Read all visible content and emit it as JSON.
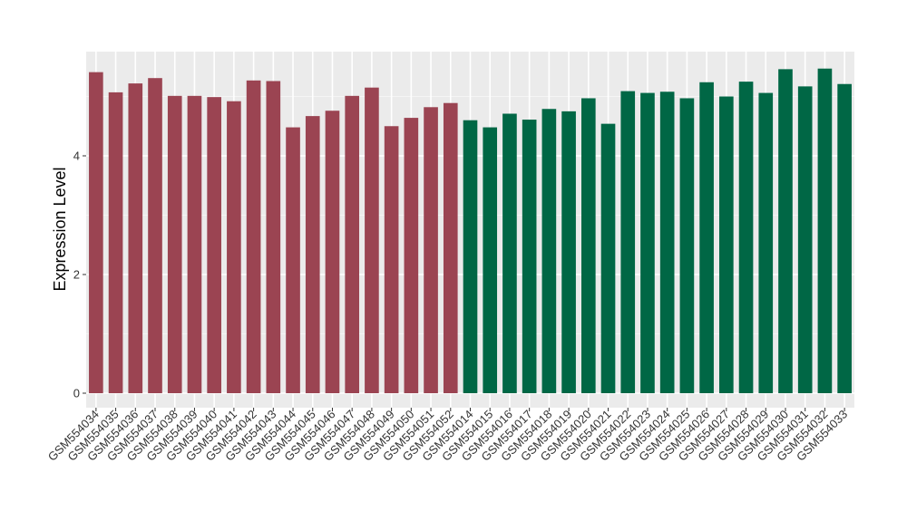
{
  "chart_data": {
    "type": "bar",
    "title": "",
    "xlabel": "",
    "ylabel": "Expression Level",
    "ylim": [
      0,
      5.65
    ],
    "y_ticks": [
      0,
      2,
      4
    ],
    "grid": true,
    "legend": "none",
    "colors": {
      "group_a": "#9b4452",
      "group_b": "#006745",
      "panel_bg": "#ebebeb",
      "grid_major": "#ffffff",
      "grid_minor": "#f5f5f5"
    },
    "categories": [
      "GSM554034",
      "GSM554035",
      "GSM554036",
      "GSM554037",
      "GSM554038",
      "GSM554039",
      "GSM554040",
      "GSM554041",
      "GSM554042",
      "GSM554043",
      "GSM554044",
      "GSM554045",
      "GSM554046",
      "GSM554047",
      "GSM554048",
      "GSM554049",
      "GSM554050",
      "GSM554051",
      "GSM554052",
      "GSM554014",
      "GSM554015",
      "GSM554016",
      "GSM554017",
      "GSM554018",
      "GSM554019",
      "GSM554020",
      "GSM554021",
      "GSM554022",
      "GSM554023",
      "GSM554024",
      "GSM554025",
      "GSM554026",
      "GSM554027",
      "GSM554028",
      "GSM554029",
      "GSM554030",
      "GSM554031",
      "GSM554032",
      "GSM554033"
    ],
    "values": [
      5.41,
      5.07,
      5.22,
      5.31,
      5.01,
      5.01,
      4.99,
      4.92,
      5.27,
      5.26,
      4.48,
      4.67,
      4.76,
      5.01,
      5.15,
      4.5,
      4.64,
      4.82,
      4.89,
      4.6,
      4.48,
      4.71,
      4.61,
      4.79,
      4.75,
      4.97,
      4.54,
      5.09,
      5.06,
      5.08,
      4.97,
      5.24,
      5.0,
      5.25,
      5.06,
      5.46,
      5.17,
      5.47,
      5.21
    ],
    "groups": [
      "a",
      "a",
      "a",
      "a",
      "a",
      "a",
      "a",
      "a",
      "a",
      "a",
      "a",
      "a",
      "a",
      "a",
      "a",
      "a",
      "a",
      "a",
      "a",
      "b",
      "b",
      "b",
      "b",
      "b",
      "b",
      "b",
      "b",
      "b",
      "b",
      "b",
      "b",
      "b",
      "b",
      "b",
      "b",
      "b",
      "b",
      "b",
      "b"
    ]
  }
}
